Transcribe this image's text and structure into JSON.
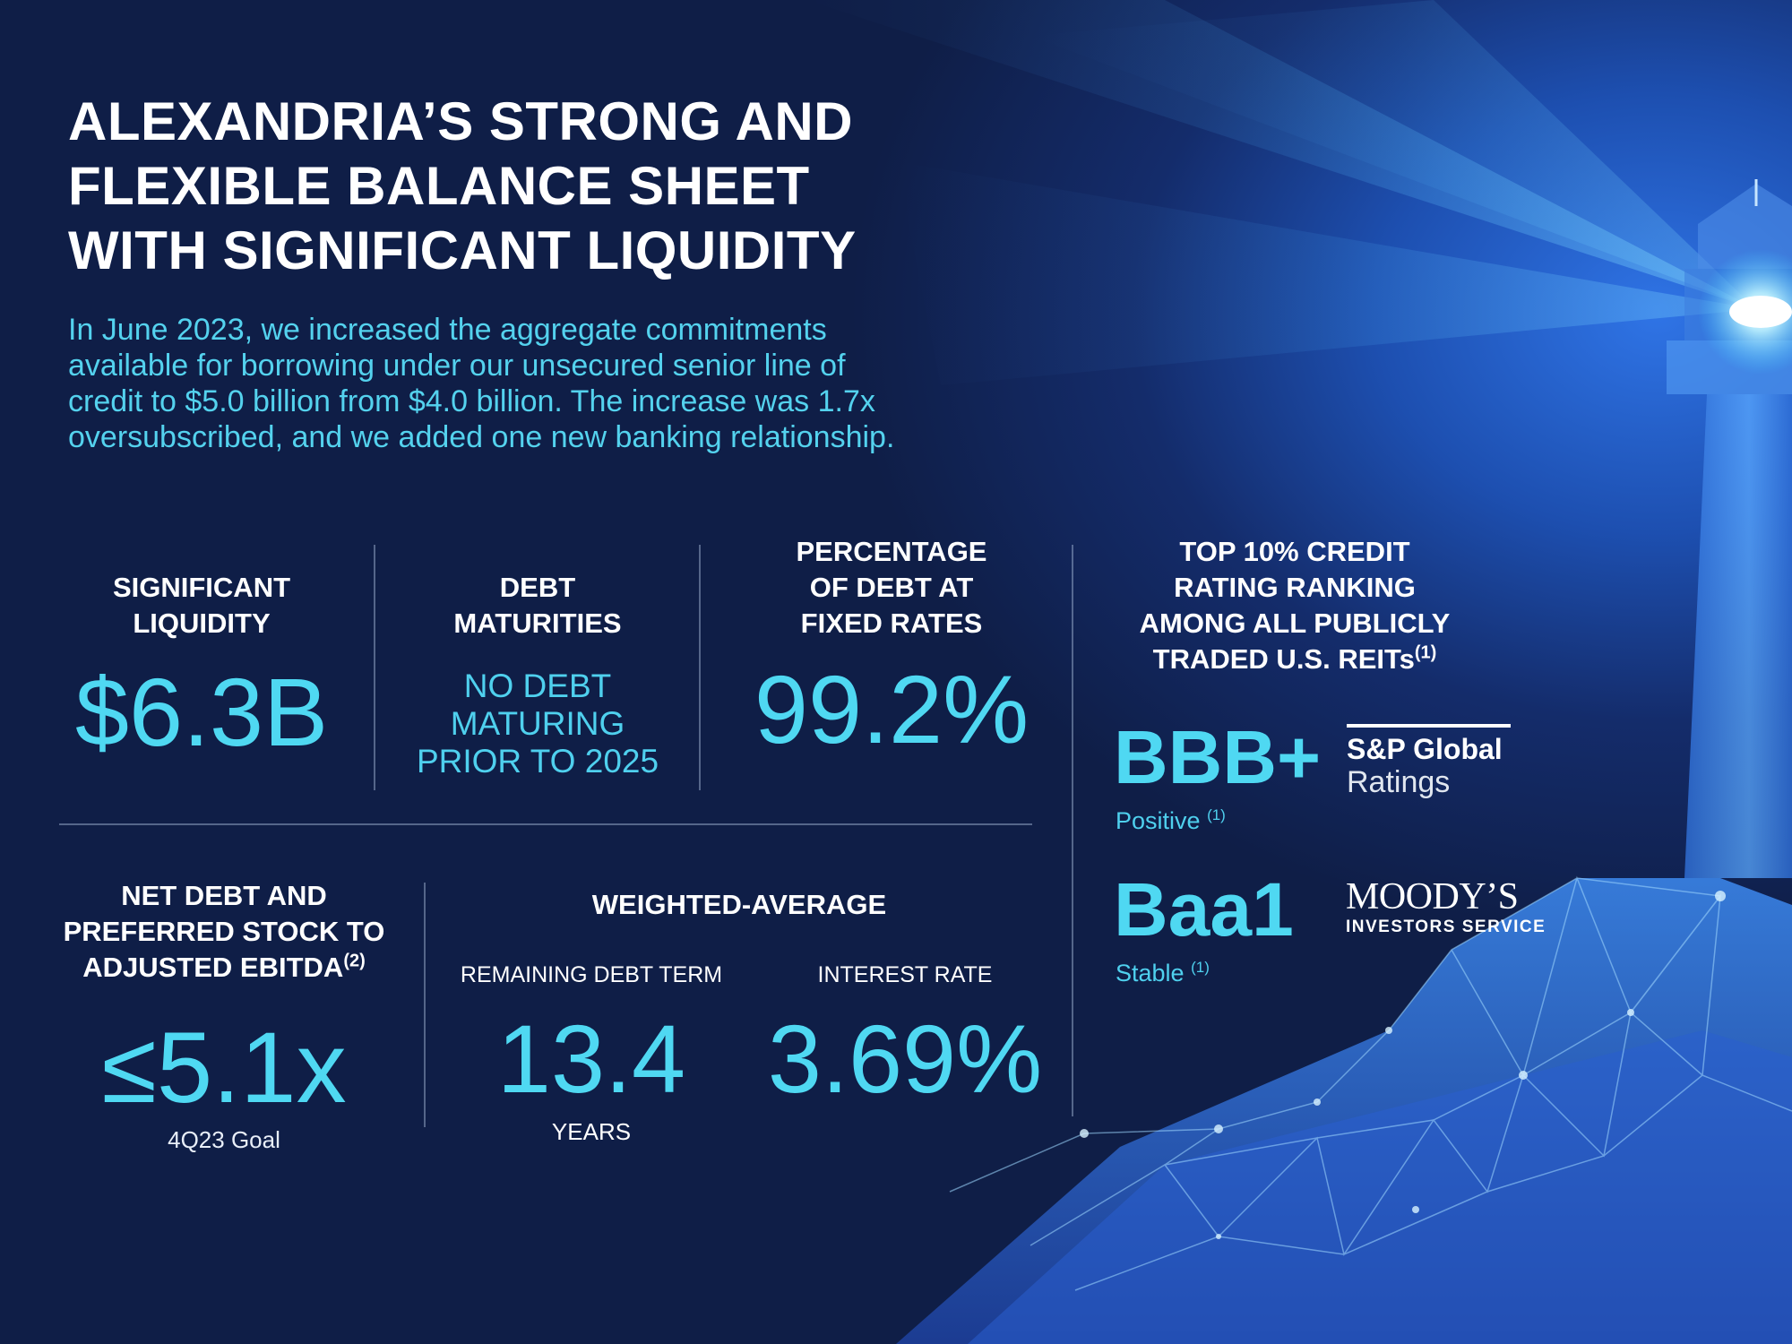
{
  "title": {
    "lines": [
      "ALEXANDRIA’S STRONG AND",
      "FLEXIBLE BALANCE SHEET",
      "WITH SIGNIFICANT LIQUIDITY"
    ]
  },
  "intro": {
    "lines": [
      "In June 2023, we increased the aggregate commitments",
      "available for borrowing under our unsecured senior line of",
      "credit to $5.0 billion from $4.0 billion. The increase was 1.7x",
      "oversubscribed, and we added one new banking relationship."
    ]
  },
  "liquidity": {
    "label_lines": [
      "SIGNIFICANT",
      "LIQUIDITY"
    ],
    "value": "$6.3B"
  },
  "maturities": {
    "label_lines": [
      "DEBT",
      "MATURITIES"
    ],
    "value_lines": [
      "NO DEBT",
      "MATURING",
      "PRIOR TO 2025"
    ]
  },
  "fixed_rate": {
    "label_lines": [
      "PERCENTAGE",
      "OF DEBT AT",
      "FIXED RATES"
    ],
    "value": "99.2%"
  },
  "credit": {
    "label_lines": [
      "TOP 10% CREDIT",
      "RATING RANKING",
      "AMONG ALL PUBLICLY",
      "TRADED U.S. REITs"
    ],
    "footnote": "(1)",
    "ratings": [
      {
        "rating": "BBB+",
        "outlook": "Positive",
        "footnote": "(1)",
        "agency_top": "S&P Global",
        "agency_bottom": "Ratings"
      },
      {
        "rating": "Baa1",
        "outlook": "Stable",
        "footnote": "(1)",
        "agency_top": "MOODY’S",
        "agency_bottom": "INVESTORS SERVICE"
      }
    ]
  },
  "net_debt": {
    "label_lines": [
      "NET DEBT AND",
      "PREFERRED STOCK TO",
      "ADJUSTED EBITDA"
    ],
    "footnote": "(2)",
    "value": "≤5.1x",
    "caption": "4Q23 Goal"
  },
  "weighted_average": {
    "label": "WEIGHTED-AVERAGE",
    "term_label": "REMAINING DEBT TERM",
    "term_value": "13.4",
    "term_unit": "YEARS",
    "rate_label": "INTEREST RATE",
    "rate_value": "3.69%"
  },
  "colors": {
    "accent": "#4fd8f2",
    "background": "#0f1e47",
    "beam": "#5fd6ff"
  },
  "decor": {
    "illustration": "lighthouse-on-low-poly-rocks"
  }
}
